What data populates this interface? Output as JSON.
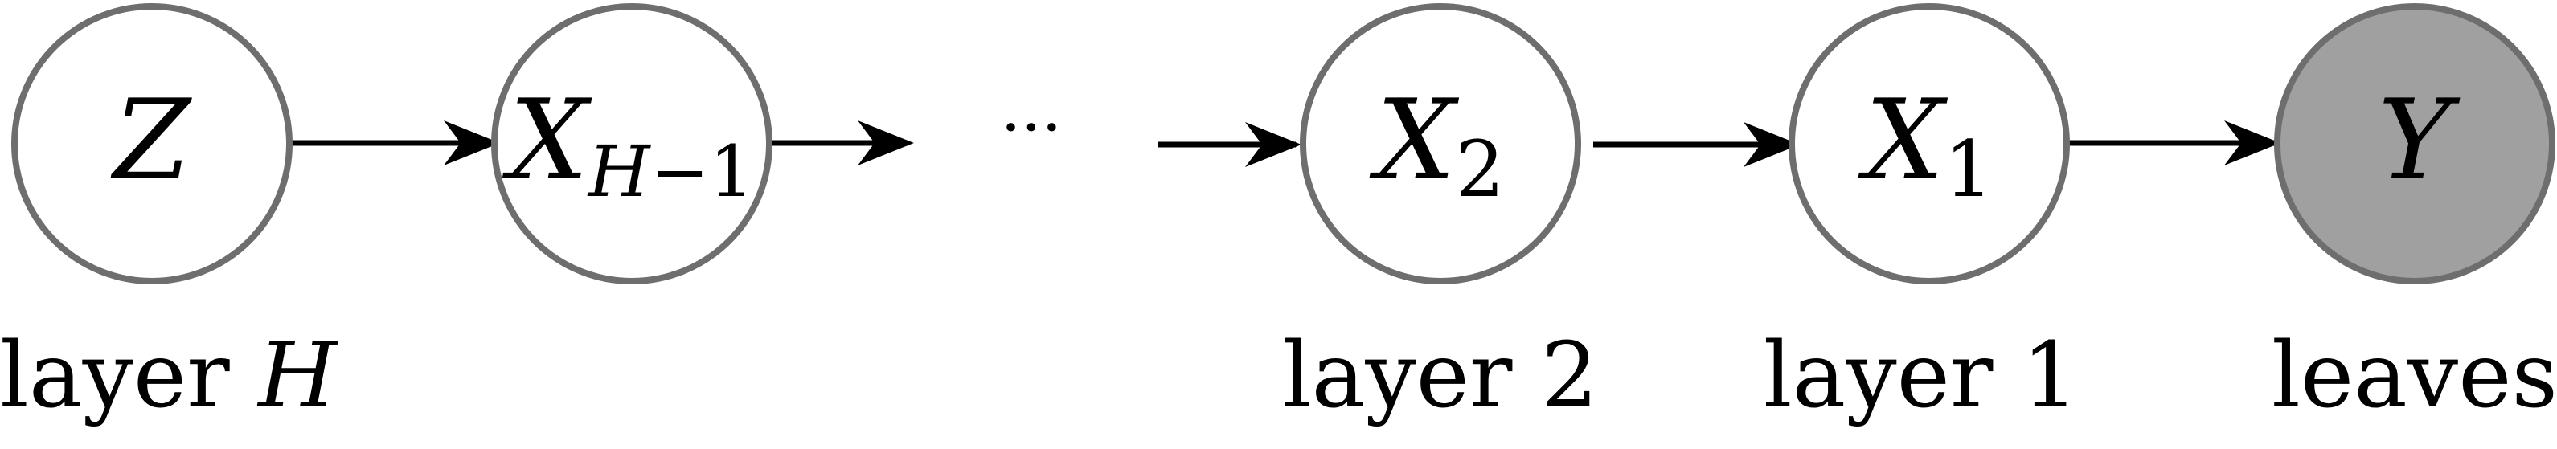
{
  "nodes": {
    "z": {
      "symbol": "Z",
      "subscript": ""
    },
    "x_h_minus_1": {
      "symbol": "X",
      "subscript_letter": "H",
      "subscript_rest": "−1"
    },
    "x2": {
      "symbol": "X",
      "subscript": "2"
    },
    "x1": {
      "symbol": "X",
      "subscript": "1"
    },
    "y": {
      "symbol": "Y",
      "subscript": "",
      "observed": true
    }
  },
  "ellipsis": "···",
  "labels": {
    "layer_h_prefix": "layer ",
    "layer_h_var": "H",
    "layer_2": "layer 2",
    "layer_1": "layer 1",
    "leaves": "leaves"
  },
  "colors": {
    "node_border": "#6e6e6e",
    "observed_fill": "#a0a0a0",
    "edge": "#000000"
  }
}
